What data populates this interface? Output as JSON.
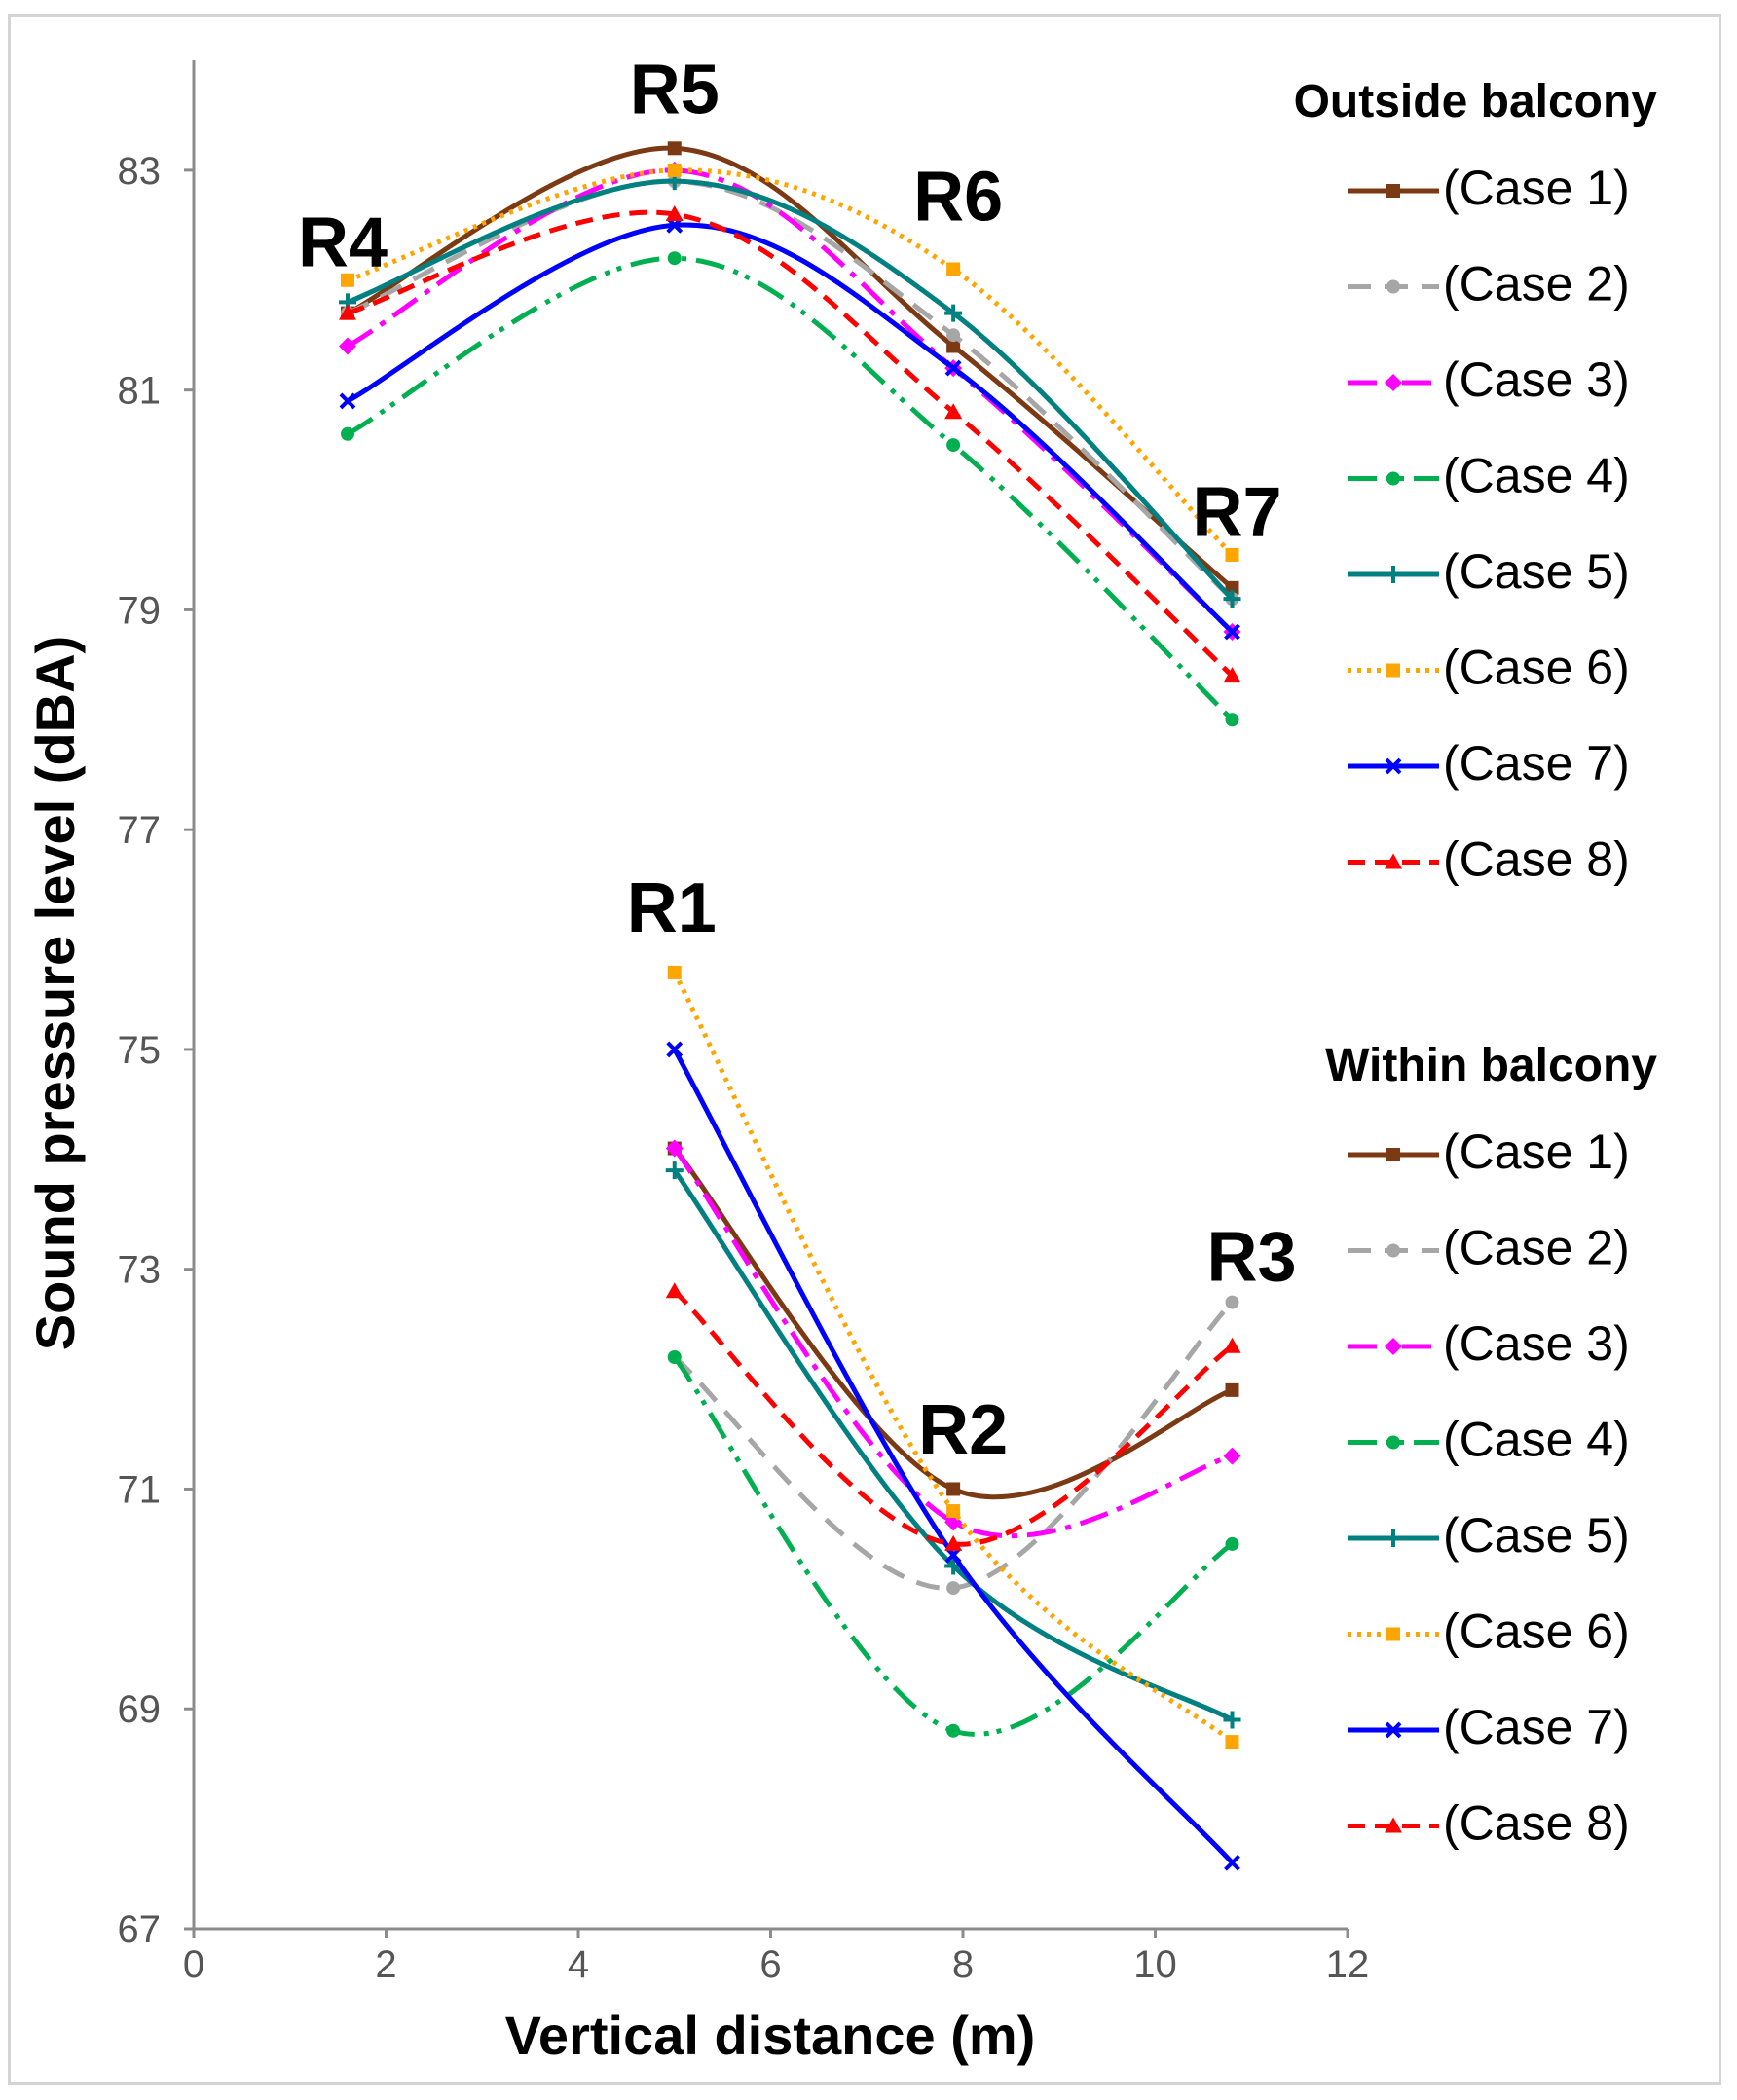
{
  "chart_data": {
    "type": "line",
    "xlabel": "Vertical distance (m)",
    "ylabel": "Sound pressure level (dBA)",
    "xlim": [
      0,
      12
    ],
    "ylim": [
      67,
      84
    ],
    "xticks": [
      0,
      2,
      4,
      6,
      8,
      10,
      12
    ],
    "yticks": [
      67,
      69,
      71,
      73,
      75,
      77,
      79,
      81,
      83
    ],
    "point_labels": [
      {
        "text": "R4",
        "x": 1.6,
        "y": 81.7
      },
      {
        "text": "R5",
        "x": 5.0,
        "y": 83.2
      },
      {
        "text": "R6",
        "x": 7.9,
        "y": 82.1
      },
      {
        "text": "R7",
        "x": 10.8,
        "y": 79.3
      },
      {
        "text": "R1",
        "x": 5.0,
        "y": 75.7
      },
      {
        "text": "R2",
        "x": 7.9,
        "y": 70.9
      },
      {
        "text": "R3",
        "x": 10.8,
        "y": 72.7
      }
    ],
    "groups": [
      {
        "title": "Outside balcony",
        "x": [
          1.6,
          5.0,
          7.9,
          10.8
        ],
        "series": [
          {
            "name": "(Case 1)",
            "values": [
              81.7,
              83.2,
              81.4,
              79.2
            ],
            "color": "#7b3a14",
            "dash": "",
            "marker": "square"
          },
          {
            "name": "(Case 2)",
            "values": [
              81.7,
              82.9,
              81.5,
              79.1
            ],
            "color": "#a6a6a6",
            "dash": "24 14",
            "marker": "circle"
          },
          {
            "name": "(Case 3)",
            "values": [
              81.4,
              83.0,
              81.2,
              78.8
            ],
            "color": "#ff00ff",
            "dash": "30 10 6 10",
            "marker": "diamond"
          },
          {
            "name": "(Case 4)",
            "values": [
              80.6,
              82.2,
              80.5,
              78.0
            ],
            "color": "#00b050",
            "dash": "30 10 5 8 5 10",
            "marker": "circle"
          },
          {
            "name": "(Case 5)",
            "values": [
              81.8,
              82.9,
              81.7,
              79.1
            ],
            "color": "#008080",
            "dash": "",
            "marker": "plus"
          },
          {
            "name": "(Case 6)",
            "values": [
              82.0,
              83.0,
              82.1,
              79.5
            ],
            "color": "#ffa500",
            "dash": "4 6",
            "marker": "square"
          },
          {
            "name": "(Case 7)",
            "values": [
              80.9,
              82.5,
              81.2,
              78.8
            ],
            "color": "#0000ff",
            "dash": "",
            "marker": "x"
          },
          {
            "name": "(Case 8)",
            "values": [
              81.7,
              82.6,
              80.8,
              78.4
            ],
            "color": "#ff0000",
            "dash": "18 10",
            "marker": "triangle"
          }
        ]
      },
      {
        "title": "Within balcony",
        "x": [
          5.0,
          7.9,
          10.8
        ],
        "series": [
          {
            "name": "(Case 1)",
            "values": [
              74.1,
              71.0,
              71.9
            ],
            "color": "#7b3a14",
            "dash": "",
            "marker": "square"
          },
          {
            "name": "(Case 2)",
            "values": [
              72.2,
              70.1,
              72.7
            ],
            "color": "#a6a6a6",
            "dash": "24 14",
            "marker": "circle"
          },
          {
            "name": "(Case 3)",
            "values": [
              74.1,
              70.7,
              71.3
            ],
            "color": "#ff00ff",
            "dash": "30 10 6 10",
            "marker": "diamond"
          },
          {
            "name": "(Case 4)",
            "values": [
              72.2,
              68.8,
              70.5
            ],
            "color": "#00b050",
            "dash": "30 10 5 8 5 10",
            "marker": "circle"
          },
          {
            "name": "(Case 5)",
            "values": [
              73.9,
              70.3,
              68.9
            ],
            "color": "#008080",
            "dash": "",
            "marker": "plus"
          },
          {
            "name": "(Case 6)",
            "values": [
              75.7,
              70.8,
              68.7
            ],
            "color": "#ffa500",
            "dash": "4 6",
            "marker": "square"
          },
          {
            "name": "(Case 7)",
            "values": [
              75.0,
              70.4,
              67.6
            ],
            "color": "#0000ff",
            "dash": "",
            "marker": "x"
          },
          {
            "name": "(Case 8)",
            "values": [
              72.8,
              70.5,
              72.3
            ],
            "color": "#ff0000",
            "dash": "18 10",
            "marker": "triangle"
          }
        ]
      }
    ]
  }
}
